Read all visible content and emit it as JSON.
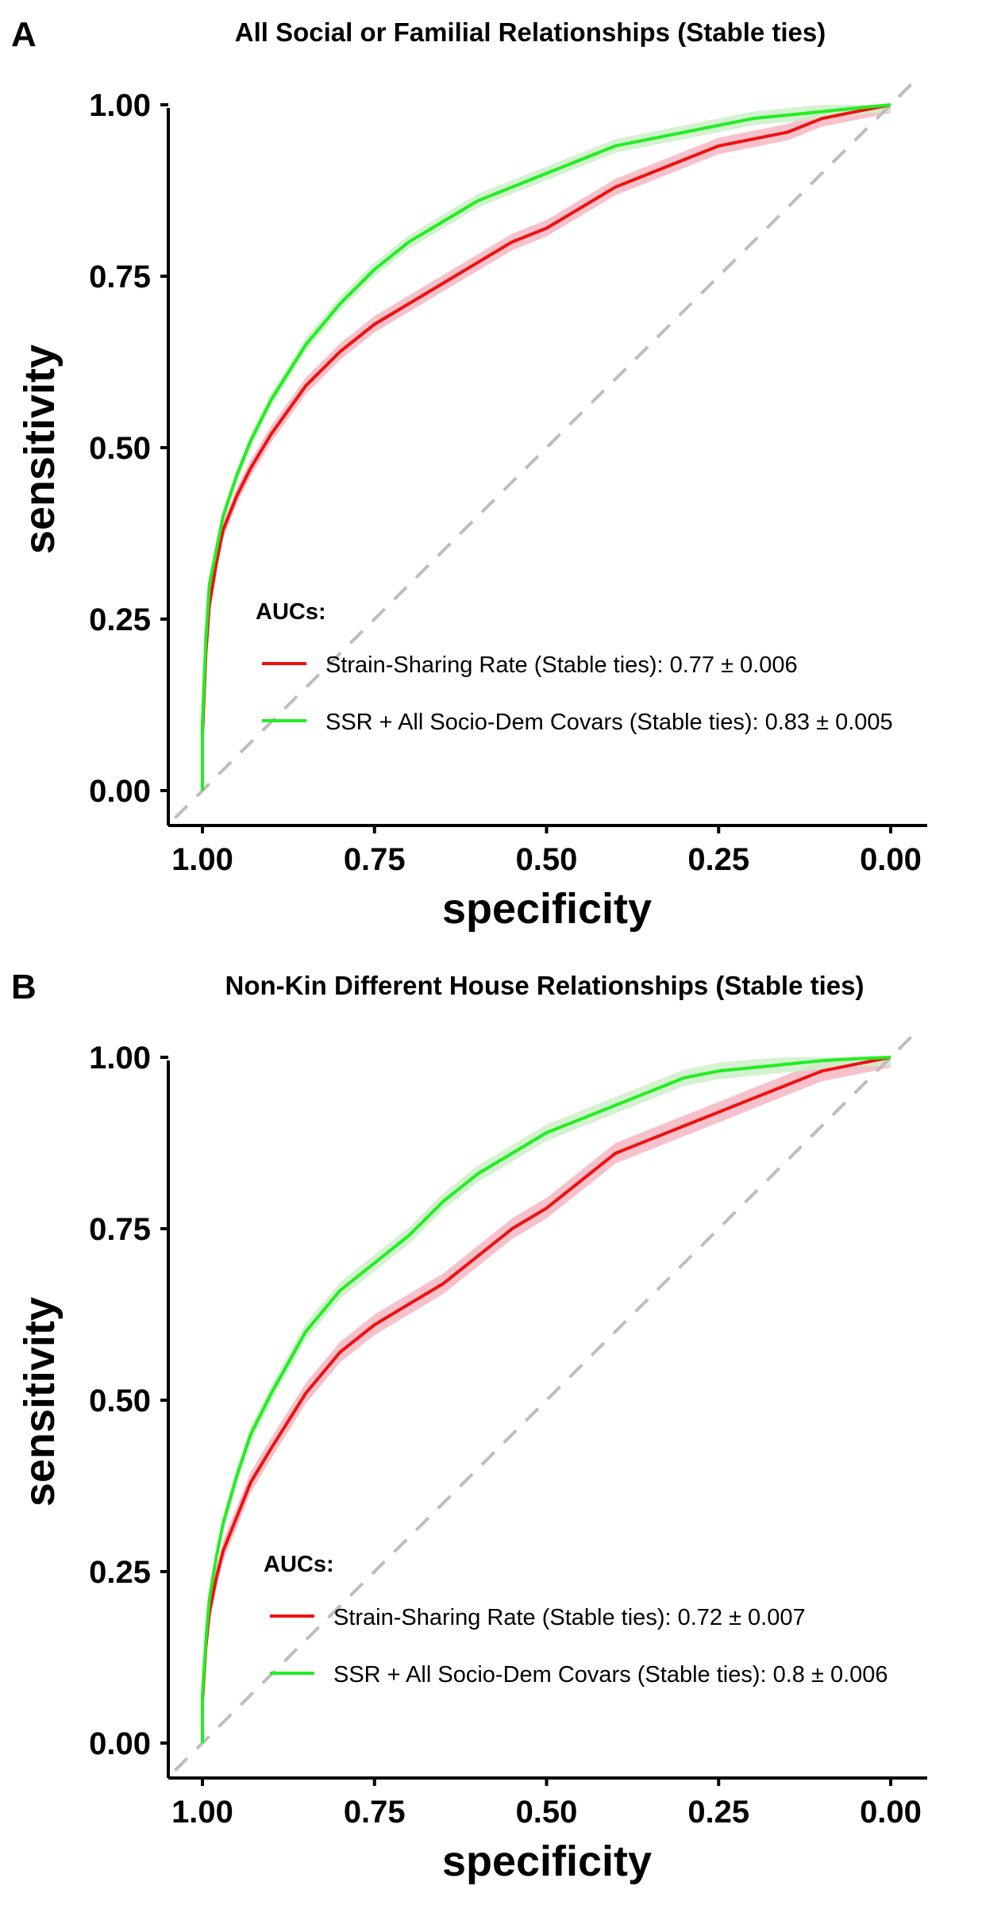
{
  "chart_data": [
    {
      "type": "line",
      "panel_label": "A",
      "title": "All Social or Familial Relationships (Stable ties)",
      "xlabel": "specificity",
      "ylabel": "sensitivity",
      "xlim": [
        1.0,
        0.0
      ],
      "ylim": [
        0.0,
        1.0
      ],
      "x_reversed": true,
      "xticks": [
        "1.00",
        "0.75",
        "0.50",
        "0.25",
        "0.00"
      ],
      "yticks": [
        "0.00",
        "0.25",
        "0.50",
        "0.75",
        "1.00"
      ],
      "grid": false,
      "reference_line": "diagonal dashed",
      "legend_title": "AUCs:",
      "legend_position": "bottom-right",
      "series": [
        {
          "name": "Strain-Sharing Rate (Stable ties): 0.77 ± 0.006",
          "color": "#ee1111",
          "band_color": "#f4b6c2",
          "specificity": [
            1.0,
            1.0,
            0.995,
            0.99,
            0.98,
            0.97,
            0.95,
            0.93,
            0.9,
            0.85,
            0.8,
            0.75,
            0.7,
            0.65,
            0.6,
            0.55,
            0.5,
            0.45,
            0.4,
            0.35,
            0.3,
            0.25,
            0.2,
            0.15,
            0.1,
            0.05,
            0.0
          ],
          "sensitivity": [
            0.0,
            0.08,
            0.2,
            0.27,
            0.33,
            0.38,
            0.43,
            0.47,
            0.52,
            0.59,
            0.64,
            0.68,
            0.71,
            0.74,
            0.77,
            0.8,
            0.82,
            0.85,
            0.88,
            0.9,
            0.92,
            0.94,
            0.95,
            0.96,
            0.98,
            0.99,
            1.0
          ],
          "band_halfwidth": 0.012
        },
        {
          "name": "SSR + All Socio-Dem Covars (Stable ties): 0.83 ± 0.005",
          "color": "#22ee22",
          "band_color": "#cdeec8",
          "specificity": [
            1.0,
            1.0,
            0.995,
            0.99,
            0.98,
            0.97,
            0.95,
            0.93,
            0.9,
            0.85,
            0.8,
            0.75,
            0.7,
            0.65,
            0.6,
            0.55,
            0.5,
            0.45,
            0.4,
            0.35,
            0.3,
            0.25,
            0.2,
            0.15,
            0.1,
            0.05,
            0.0
          ],
          "sensitivity": [
            0.0,
            0.1,
            0.22,
            0.3,
            0.35,
            0.4,
            0.46,
            0.51,
            0.57,
            0.65,
            0.71,
            0.76,
            0.8,
            0.83,
            0.86,
            0.88,
            0.9,
            0.92,
            0.94,
            0.95,
            0.96,
            0.97,
            0.98,
            0.985,
            0.99,
            0.995,
            1.0
          ],
          "band_halfwidth": 0.01
        }
      ]
    },
    {
      "type": "line",
      "panel_label": "B",
      "title": "Non-Kin Different House Relationships (Stable ties)",
      "xlabel": "specificity",
      "ylabel": "sensitivity",
      "xlim": [
        1.0,
        0.0
      ],
      "ylim": [
        0.0,
        1.0
      ],
      "x_reversed": true,
      "xticks": [
        "1.00",
        "0.75",
        "0.50",
        "0.25",
        "0.00"
      ],
      "yticks": [
        "0.00",
        "0.25",
        "0.50",
        "0.75",
        "1.00"
      ],
      "grid": false,
      "reference_line": "diagonal dashed",
      "legend_title": "AUCs:",
      "legend_position": "bottom-right",
      "series": [
        {
          "name": "Strain-Sharing Rate (Stable ties): 0.72 ± 0.007",
          "color": "#ee1111",
          "band_color": "#f4b6c2",
          "specificity": [
            1.0,
            1.0,
            0.995,
            0.99,
            0.98,
            0.97,
            0.95,
            0.93,
            0.9,
            0.85,
            0.8,
            0.75,
            0.7,
            0.65,
            0.6,
            0.55,
            0.5,
            0.45,
            0.4,
            0.35,
            0.3,
            0.25,
            0.2,
            0.15,
            0.1,
            0.05,
            0.0
          ],
          "sensitivity": [
            0.0,
            0.06,
            0.14,
            0.19,
            0.24,
            0.28,
            0.33,
            0.38,
            0.43,
            0.51,
            0.57,
            0.61,
            0.64,
            0.67,
            0.71,
            0.75,
            0.78,
            0.82,
            0.86,
            0.88,
            0.9,
            0.92,
            0.94,
            0.96,
            0.98,
            0.99,
            1.0
          ],
          "band_halfwidth": 0.015
        },
        {
          "name": "SSR + All Socio-Dem Covars (Stable ties): 0.8 ± 0.006",
          "color": "#22ee22",
          "band_color": "#cdeec8",
          "specificity": [
            1.0,
            1.0,
            0.995,
            0.99,
            0.98,
            0.97,
            0.95,
            0.93,
            0.9,
            0.85,
            0.8,
            0.75,
            0.7,
            0.65,
            0.6,
            0.55,
            0.5,
            0.45,
            0.4,
            0.35,
            0.3,
            0.25,
            0.2,
            0.15,
            0.1,
            0.05,
            0.0
          ],
          "sensitivity": [
            0.0,
            0.07,
            0.15,
            0.21,
            0.27,
            0.32,
            0.39,
            0.45,
            0.51,
            0.6,
            0.66,
            0.7,
            0.74,
            0.79,
            0.83,
            0.86,
            0.89,
            0.91,
            0.93,
            0.95,
            0.97,
            0.98,
            0.985,
            0.99,
            0.995,
            0.998,
            1.0
          ],
          "band_halfwidth": 0.012
        }
      ]
    }
  ]
}
